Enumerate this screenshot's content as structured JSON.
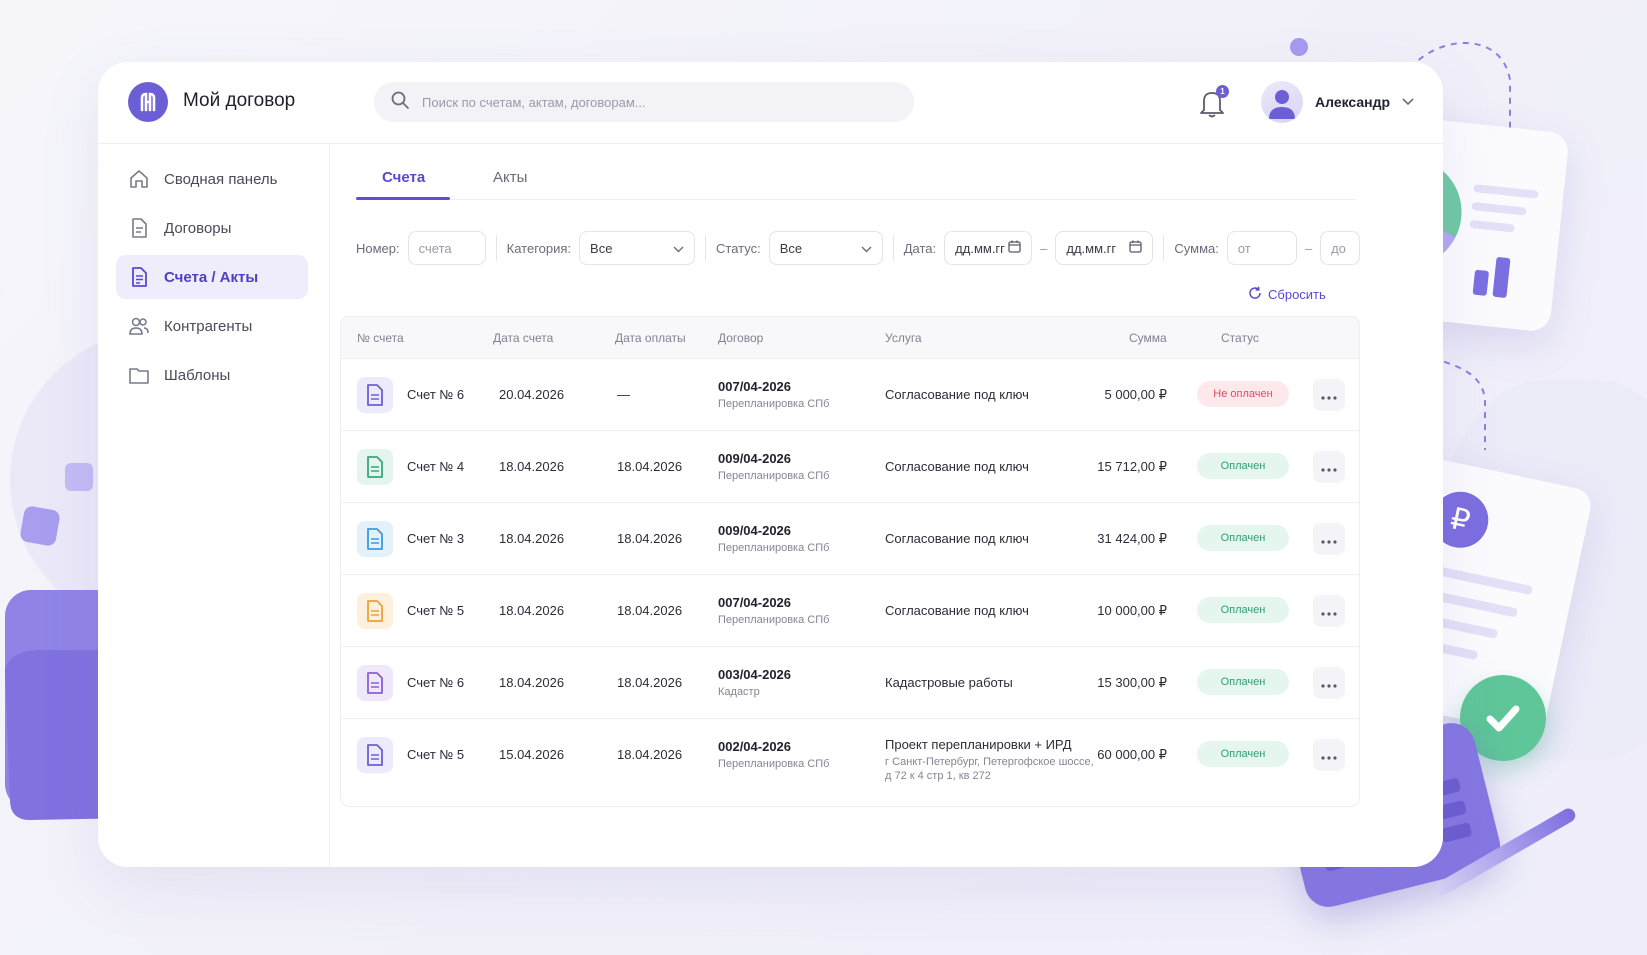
{
  "app": {
    "title": "Мой договор"
  },
  "search": {
    "placeholder": "Поиск по счетам, актам, договорам..."
  },
  "notifications": {
    "count": "1"
  },
  "user": {
    "name": "Александр"
  },
  "sidebar": {
    "items": [
      {
        "label": "Сводная панель",
        "icon": "home-icon"
      },
      {
        "label": "Договоры",
        "icon": "document-icon"
      },
      {
        "label": "Счета / Акты",
        "icon": "invoice-icon",
        "active": true
      },
      {
        "label": "Контрагенты",
        "icon": "users-icon"
      },
      {
        "label": "Шаблоны",
        "icon": "folder-icon"
      }
    ]
  },
  "tabs": [
    {
      "label": "Счета",
      "active": true
    },
    {
      "label": "Акты"
    }
  ],
  "filters": {
    "number_label": "Номер:",
    "number_placeholder": "счета",
    "category_label": "Категория:",
    "category_value": "Все",
    "status_label": "Статус:",
    "status_value": "Все",
    "date_label": "Дата:",
    "date_from": "дд.мм.гг",
    "date_to": "дд.мм.гг",
    "sum_label": "Сумма:",
    "sum_from": "от",
    "sum_to": "до",
    "reset_label": "Сбросить"
  },
  "table": {
    "headers": {
      "number": "№ счета",
      "date": "Дата счета",
      "paid_date": "Дата оплаты",
      "contract": "Договор",
      "service": "Услуга",
      "sum": "Сумма",
      "status": "Статус"
    },
    "rows": [
      {
        "number": "Счет № 6",
        "date": "20.04.2026",
        "paid_date": "—",
        "contract": "007/04-2026",
        "contract_sub": "Перепланировка СПб",
        "service": "Согласование под ключ",
        "service_sub": "",
        "service_sub2": "",
        "sum": "5 000,00 ₽",
        "status": "Не оплачен",
        "icon_color": "#6c5fd6",
        "icon_bg": "#ecebfb"
      },
      {
        "number": "Счет № 4",
        "date": "18.04.2026",
        "paid_date": "18.04.2026",
        "contract": "009/04-2026",
        "contract_sub": "Перепланировка СПб",
        "service": "Согласование под ключ",
        "service_sub": "",
        "service_sub2": "",
        "sum": "15 712,00 ₽",
        "status": "Оплачен",
        "icon_color": "#35a97a",
        "icon_bg": "#e4f5ee"
      },
      {
        "number": "Счет № 3",
        "date": "18.04.2026",
        "paid_date": "18.04.2026",
        "contract": "009/04-2026",
        "contract_sub": "Перепланировка СПб",
        "service": "Согласование под ключ",
        "service_sub": "",
        "service_sub2": "",
        "sum": "31 424,00 ₽",
        "status": "Оплачен",
        "icon_color": "#3a9be0",
        "icon_bg": "#e3f1fb"
      },
      {
        "number": "Счет № 5",
        "date": "18.04.2026",
        "paid_date": "18.04.2026",
        "contract": "007/04-2026",
        "contract_sub": "Перепланировка СПб",
        "service": "Согласование под ключ",
        "service_sub": "",
        "service_sub2": "",
        "sum": "10 000,00 ₽",
        "status": "Оплачен",
        "icon_color": "#f0a032",
        "icon_bg": "#fdf1de"
      },
      {
        "number": "Счет № 6",
        "date": "18.04.2026",
        "paid_date": "18.04.2026",
        "contract": "003/04-2026",
        "contract_sub": "Кадастр",
        "service": "Кадастровые работы",
        "service_sub": "",
        "service_sub2": "",
        "sum": "15 300,00 ₽",
        "status": "Оплачен",
        "icon_color": "#8a5fd6",
        "icon_bg": "#efe8fb"
      },
      {
        "number": "Счет № 5",
        "date": "15.04.2026",
        "paid_date": "18.04.2026",
        "contract": "002/04-2026",
        "contract_sub": "Перепланировка СПб",
        "service": "Проект перепланировки + ИРД",
        "service_sub": "г Санкт-Петербург, Петергофское шоссе,",
        "service_sub2": "д 72 к 4 стр 1, кв 272",
        "sum": "60 000,00 ₽",
        "status": "Оплачен",
        "icon_color": "#6c5fd6",
        "icon_bg": "#ecebfb"
      }
    ]
  },
  "colors": {
    "accent": "#5e50d3",
    "paid": "#2f9f6f",
    "unpaid": "#e14b5f"
  }
}
